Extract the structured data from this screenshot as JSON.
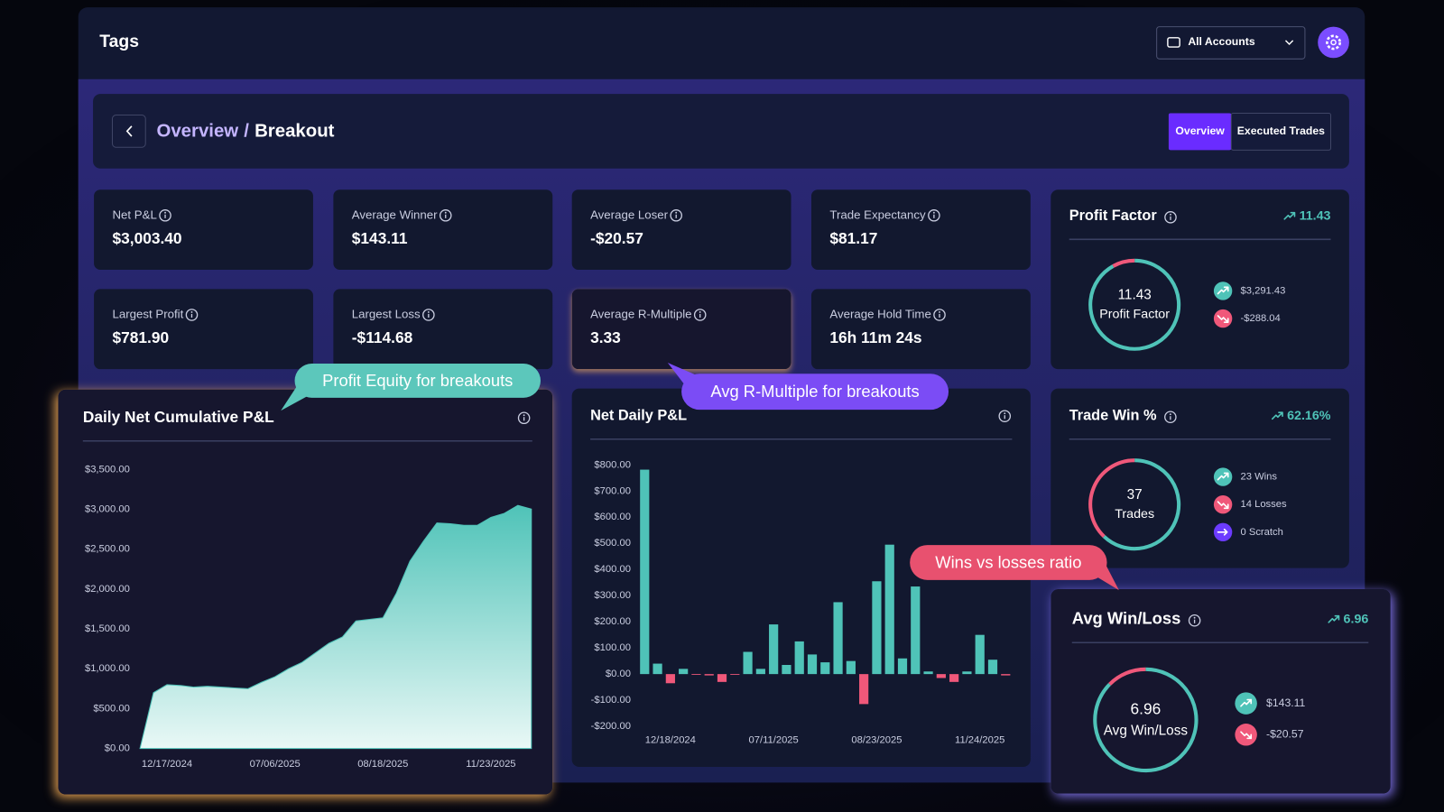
{
  "header": {
    "title": "Tags",
    "account": "All Accounts"
  },
  "breadcrumb": {
    "parent": "Overview",
    "separator": "/",
    "current": "Breakout"
  },
  "tabs": [
    "Overview",
    "Executed Trades"
  ],
  "stats": [
    {
      "label": "Net P&L",
      "value": "$3,003.40"
    },
    {
      "label": "Average Winner",
      "value": "$143.11"
    },
    {
      "label": "Average Loser",
      "value": "-$20.57"
    },
    {
      "label": "Trade Expectancy",
      "value": "$81.17"
    },
    {
      "label": "Largest Profit",
      "value": "$781.90"
    },
    {
      "label": "Largest Loss",
      "value": "-$114.68"
    },
    {
      "label": "Average R-Multiple",
      "value": "3.33"
    },
    {
      "label": "Average Hold Time",
      "value": "16h 11m 24s"
    }
  ],
  "profit_factor": {
    "title": "Profit Factor",
    "trend": 11.43,
    "gauge_value": 11.43,
    "gauge_label": "Profit Factor",
    "gains": {
      "value": 3291.43,
      "label": "$3,291.43"
    },
    "losses": {
      "value": -288.04,
      "label": "-$288.04"
    }
  },
  "trade_win": {
    "title": "Trade Win %",
    "trend": "62.16%",
    "total": 37,
    "total_label": "Trades",
    "wins": {
      "value": 23,
      "label": "23 Wins"
    },
    "losses": {
      "value": 14,
      "label": "14 Losses"
    },
    "scratch": {
      "value": 0,
      "label": "0 Scratch"
    }
  },
  "avg_win_loss": {
    "title": "Avg Win/Loss",
    "trend": 6.96,
    "gauge_value": 6.96,
    "gauge_label": "Avg Win/Loss",
    "avg_win": {
      "value": 143.11,
      "label": "$143.11"
    },
    "avg_loss": {
      "value": -20.57,
      "label": "-$20.57"
    }
  },
  "callouts": [
    "Profit Equity for breakouts",
    "Avg R-Multiple for breakouts",
    "Wins vs losses ratio"
  ],
  "chart_data": [
    {
      "type": "area",
      "title": "Daily Net Cumulative P&L",
      "categories": [
        null,
        null,
        "12/17/2024",
        null,
        null,
        null,
        null,
        null,
        null,
        null,
        "07/06/2025",
        null,
        null,
        null,
        null,
        null,
        null,
        null,
        "08/18/2025",
        null,
        null,
        null,
        null,
        null,
        null,
        null,
        "11/23/2025",
        null,
        null,
        null
      ],
      "values": [
        0,
        700,
        800,
        790,
        770,
        780,
        770,
        760,
        750,
        830,
        900,
        1000,
        1080,
        1200,
        1320,
        1400,
        1600,
        1620,
        1640,
        1950,
        2350,
        2600,
        2830,
        2820,
        2800,
        2800,
        2900,
        2950,
        3050,
        3003.4
      ],
      "color": "#4fc3b8",
      "ylim": [
        0,
        3500
      ],
      "yticks": [
        {
          "value": 0,
          "label": "$0.00"
        },
        {
          "value": 500,
          "label": "$500.00"
        },
        {
          "value": 1000,
          "label": "$1,000.00"
        },
        {
          "value": 1500,
          "label": "$1,500.00"
        },
        {
          "value": 2000,
          "label": "$2,000.00"
        },
        {
          "value": 2500,
          "label": "$2,500.00"
        },
        {
          "value": 3000,
          "label": "$3,000.00"
        },
        {
          "value": 3500,
          "label": "$3,500.00"
        }
      ],
      "grid": false
    },
    {
      "type": "bar",
      "title": "Net Daily P&L",
      "categories": [
        null,
        null,
        "12/18/2024",
        null,
        null,
        null,
        null,
        null,
        null,
        null,
        "07/11/2025",
        null,
        null,
        null,
        null,
        null,
        null,
        null,
        "08/23/2025",
        null,
        null,
        null,
        null,
        null,
        null,
        null,
        "11/24/2025",
        null,
        null
      ],
      "values": [
        781.9,
        40,
        -35,
        20,
        -3,
        -5,
        -30,
        -3,
        85,
        20,
        190,
        35,
        125,
        75,
        45,
        275,
        50,
        -114.68,
        355,
        495,
        60,
        335,
        10,
        -15,
        -30,
        10,
        150,
        55,
        -5
      ],
      "color": "#4fc3b8",
      "negative_color": "#f0587a",
      "ylim": [
        -200,
        800
      ],
      "yticks": [
        {
          "value": -200,
          "label": "-$200.00"
        },
        {
          "value": -100,
          "label": "-$100.00"
        },
        {
          "value": 0,
          "label": "$0.00"
        },
        {
          "value": 100,
          "label": "$100.00"
        },
        {
          "value": 200,
          "label": "$200.00"
        },
        {
          "value": 300,
          "label": "$300.00"
        },
        {
          "value": 400,
          "label": "$400.00"
        },
        {
          "value": 500,
          "label": "$500.00"
        },
        {
          "value": 600,
          "label": "$600.00"
        },
        {
          "value": 700,
          "label": "$700.00"
        },
        {
          "value": 800,
          "label": "$800.00"
        }
      ],
      "grid": false
    }
  ]
}
